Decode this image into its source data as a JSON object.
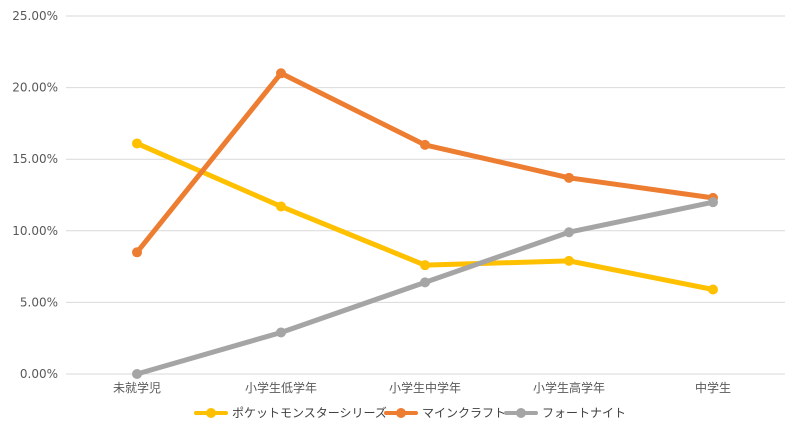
{
  "chart_data": {
    "type": "line",
    "categories": [
      "未就学児",
      "小学生低学年",
      "小学生中学年",
      "小学生高学年",
      "中学生"
    ],
    "ylim": [
      0,
      0.25
    ],
    "yticks": [
      0,
      0.05,
      0.1,
      0.15,
      0.2,
      0.25
    ],
    "ytick_labels": [
      "0.00%",
      "5.00%",
      "10.00%",
      "15.00%",
      "20.00%",
      "25.00%"
    ],
    "grid": true,
    "legend_position": "bottom",
    "series": [
      {
        "name": "ポケットモンスターシリーズ",
        "color": "#FFC000",
        "values": [
          0.161,
          0.117,
          0.076,
          0.079,
          0.059
        ]
      },
      {
        "name": "マインクラフト",
        "color": "#ED7D31",
        "values": [
          0.085,
          0.21,
          0.16,
          0.137,
          0.123
        ]
      },
      {
        "name": "フォートナイト",
        "color": "#A5A5A5",
        "values": [
          0.0,
          0.029,
          0.064,
          0.099,
          0.12
        ]
      }
    ]
  }
}
